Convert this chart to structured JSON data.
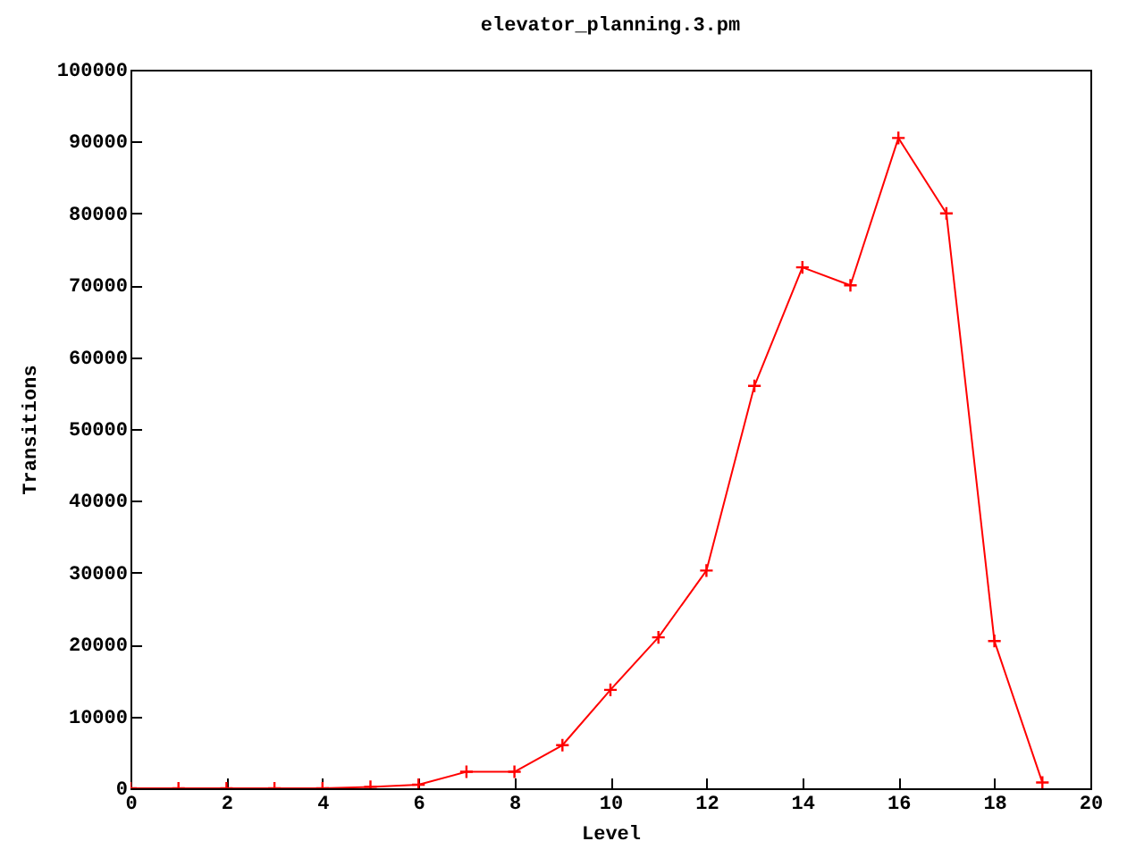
{
  "chart_data": {
    "type": "line",
    "title": "elevator_planning.3.pm",
    "xlabel": "Level",
    "ylabel": "Transitions",
    "x": [
      0,
      1,
      2,
      3,
      4,
      5,
      6,
      7,
      8,
      9,
      10,
      11,
      12,
      13,
      14,
      15,
      16,
      17,
      18,
      19
    ],
    "series": [
      {
        "color": "#ff0000",
        "values": [
          0,
          0,
          0,
          0,
          0,
          200,
          500,
          2300,
          2300,
          6000,
          13700,
          21000,
          30300,
          56000,
          72500,
          70000,
          90500,
          80000,
          20500,
          800
        ]
      }
    ],
    "xlim": [
      0,
      20
    ],
    "xticks": [
      0,
      2,
      4,
      6,
      8,
      10,
      12,
      14,
      16,
      18,
      20
    ],
    "ylim": [
      0,
      100000
    ],
    "yticks": [
      0,
      10000,
      20000,
      30000,
      40000,
      50000,
      60000,
      70000,
      80000,
      90000,
      100000
    ],
    "grid": false,
    "marker": "cross",
    "line_style": "solid",
    "legend": false
  }
}
